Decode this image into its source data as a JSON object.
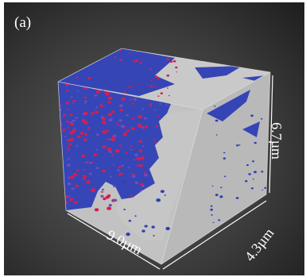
{
  "figure": {
    "panel_label": "(a)",
    "dimensions": {
      "x_length": "9.0µm",
      "depth": "4.3µm",
      "height": "6.7µm"
    },
    "colors": {
      "background": "#303030",
      "pore_phase": "#c8c8c8",
      "solid_phase": "#3040b8",
      "hot_spots": "#d02050"
    }
  }
}
